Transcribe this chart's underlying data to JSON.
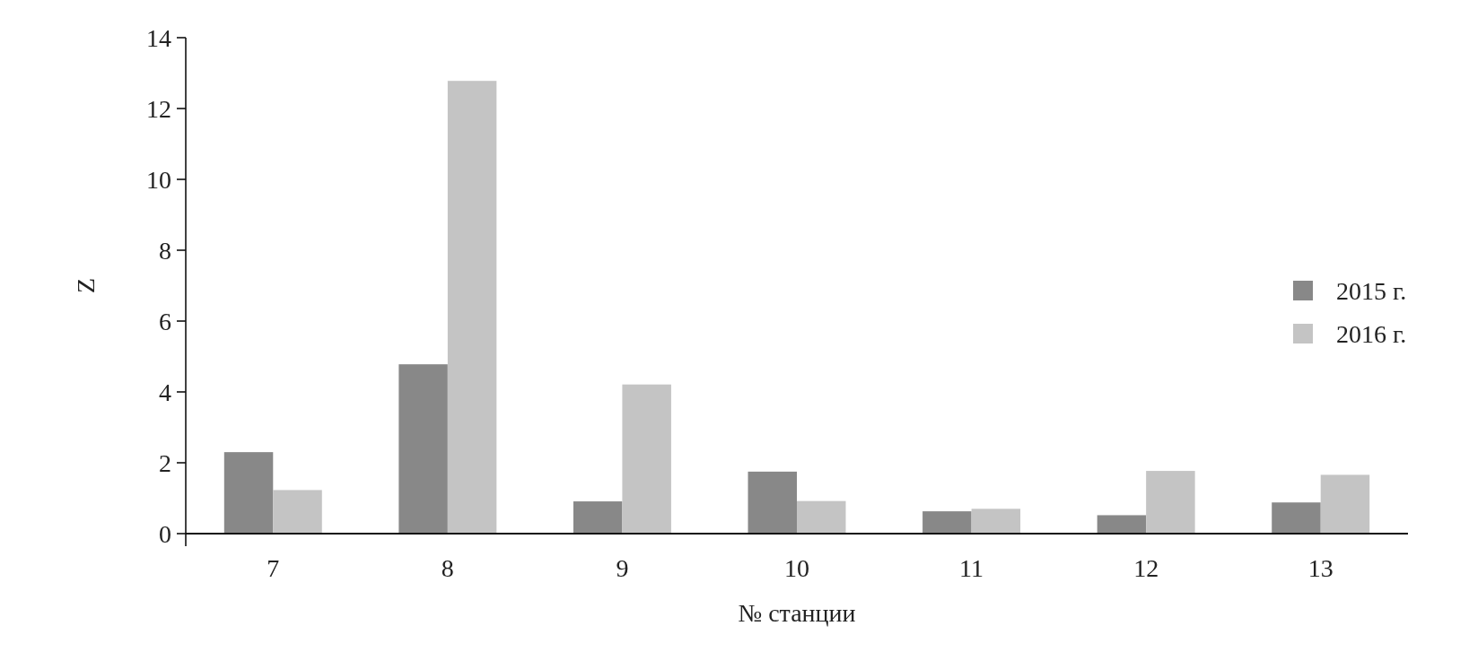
{
  "chart_data": {
    "type": "bar",
    "xlabel": "№ станции",
    "ylabel": "Z",
    "categories": [
      "7",
      "8",
      "9",
      "10",
      "11",
      "12",
      "13"
    ],
    "series": [
      {
        "name": "2015 г.",
        "color": "#888888",
        "values": [
          2.3,
          4.78,
          0.91,
          1.75,
          0.63,
          0.52,
          0.88
        ]
      },
      {
        "name": "2016 г.",
        "color": "#c4c4c4",
        "values": [
          1.23,
          12.78,
          4.21,
          0.92,
          0.7,
          1.77,
          1.66
        ]
      }
    ],
    "ylim": [
      0,
      14
    ],
    "yticks": [
      0,
      2,
      4,
      6,
      8,
      10,
      12,
      14
    ],
    "legend": "right",
    "grid": false
  }
}
